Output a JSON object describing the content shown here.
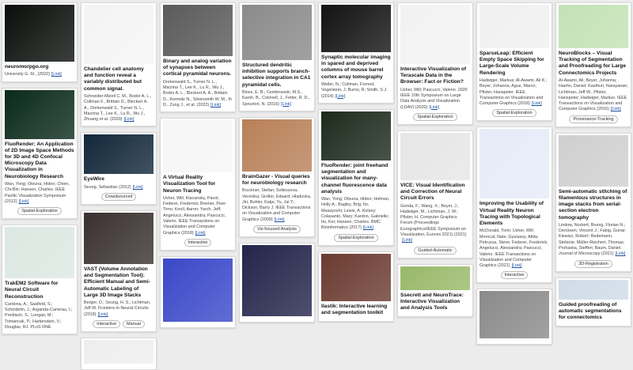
{
  "columns": [
    {
      "cards": [
        {
          "title": "neuromorpgo.org",
          "meta": "University G. M., (2022)",
          "link": "[Link]"
        },
        {
          "title": "FluoRender: An Application of 2D Image Space Methods for 3D and 4D Confocal Microscopy Data Visualization in Neurobiology Research",
          "meta": "Wan, Yong; Otsuna, Hideo; Chien, Chi-Bin; Hansen, Charles. IEEE Pacific Visualization Symposium (2012)",
          "link": "[Link]",
          "tags": [
            "Spatial-Exploration"
          ]
        },
        {
          "title": "TrakEM2 Software for Neural Circuit Reconstruction",
          "meta": "Cardona, A.; Saalfeld, S.; Schindelin, J.; Arganda-Carreras, I.; Preibisch, S.; Longair, M.; Tomancak, P.; Hartenstein, V.; Douglas, RJ. PLoS ONE"
        }
      ]
    },
    {
      "cards": [
        {
          "title": "Chandelier cell anatomy and function reveal a variably distributed but common signal.",
          "meta": "Schneider-Mizell C. M., Bodor A. L., Collman F., Brittain D., Bleckert A. A., Dorkenwald S., Turner N. L., Macrina T., Lee K., Lu R., Wu J., Zhuang et al. (2020)",
          "link": "[Link]"
        },
        {
          "title": "EyeWire",
          "meta": "Seung, Sebastian (2012)",
          "link": "[Link]",
          "tags": [
            "Crowdsourced"
          ]
        },
        {
          "title": "VAST (Volume Annotation and Segmentation Tool): Efficient Manual and Semi-Automatic Labeling of Large 3D Image Stacks",
          "meta": "Berger, D.; Seung, H. S.; Lichtman, Jeff W. Frontiers in Neural Circuits (2018)",
          "link": "[Link]",
          "tags": [
            "Interactive",
            "Manual"
          ]
        }
      ]
    },
    {
      "cards": [
        {
          "title": "Binary and analog variation of synapses between cortical pyramidal neurons.",
          "meta": "Dorkenwald S., Turner N. L., Macrina T., Lee K., Lu R., Wu J., Bodor A. L., Bleckert A. A., Brittain D., Kemnitz N., Silversmith W. M., Ih D., Zung J., et al. (2022)",
          "link": "[Link]"
        },
        {
          "title": "A Virtual Reality Visualization Tool for Neuron Tracing",
          "meta": "Usher, Will; Klacansky, Pavol; Federer, Frederick; Bremer, Peer-Timo; Knoll, Aaron; Yarch, Jeff; Angelucci, Alessandra; Pascucci, Valerio. IEEE Transactions on Visualization and Computer Graphics (2018)",
          "link": "[Link]",
          "tags": [
            "Interactive"
          ]
        }
      ]
    },
    {
      "cards": [
        {
          "title": "Structured dendritic inhibition supports branch-selective integration in CA1 pyramidal cells.",
          "meta": "Bloss, E. B., Cembrowski, M.S., Karsh, B., Colonell, J., Fetter, R. D., Spruston, N. (2016)",
          "link": "[Link]"
        },
        {
          "title": "BrainGazer - Visual queries for neurobiology research",
          "meta": "Bruckner, Stefan; Solteszova, Veronika; Groller, Eduard; Hladuvka, Jiri; Buhler, Katja; Yu, Jai Y.; Dickson, Barry J. IEEE Transactions on Visualization and Computer Graphics (2009)",
          "link": "[Link]",
          "tags": [
            "Vis-focused-Analysis"
          ]
        }
      ]
    },
    {
      "cards": [
        {
          "title": "Synaptic molecular imaging in spared and deprived columns of mouse barrel cortex array tomography",
          "meta": "Weiler, N.; Collman, Forrest; Vogelstein, J; Burns, R; Smith, S J. (2014)",
          "link": "[Link]"
        },
        {
          "title": "FluoRender: joint freehand segmentation and visualization for many-channel fluorescence data analysis",
          "meta": "Wan, Yong; Otsuna, Hideo; Holman, Holly A.; Bagley, Brig; Ito, Masayoshi; Lewis, A. Kelsey; Colasanto, Mary; Kardon, Gabrielle; Ito, Kei; Hansen, Charles. BMC Bioinformatics (2017)",
          "link": "[Link]",
          "tags": [
            "Spatial-Exploration"
          ]
        },
        {
          "title": "Ilastik: Interactive learning and segmentation toolkit"
        }
      ]
    },
    {
      "cards": [
        {
          "title": "Interactive Visualization of Terascale Data in the Browser: Fact or Fiction?",
          "meta": "Usher, Will; Pascucci, Valerio. 2020 IEEE 10th Symposium on Large Data Analysis and Visualization (LDAV) (2020)",
          "link": "[Link]",
          "tags": [
            "Spatial-Exploration"
          ]
        },
        {
          "title": "VICE: Visual Identification and Correction of Neural Circuit Errors",
          "meta": "Gonda, F.; Wang, X.; Beyer, J.; Hadwiger, M.; Lichtman, J. W.; Pfister, H. Computer Graphics Forum (Proceedings Eurographics/IEEE Symposium on Visualization, Eurovis 2021) (2021)",
          "link": "[Link]",
          "tags": [
            "Guided-Automatic"
          ]
        },
        {
          "title": "Ssecrett and NeuroTrace: Interactive Visualization and Analysis Tools"
        }
      ]
    },
    {
      "cards": [
        {
          "title": "SparseLeap: Efficient Empty Space Skipping for Large-Scale Volume Rendering",
          "meta": "Hadwiger, Markus; Al-Awami, Ali K.; Beyer, Johanna; Agus, Marco; Pfister, Hanspeter. IEEE Transactions on Visualization and Computer Graphics (2018)",
          "link": "[Link]",
          "tags": [
            "Spatial-Exploration"
          ]
        },
        {
          "title": "Improving the Usability of Virtual Reality Neuron Tracing with Topological Elements",
          "meta": "McDonald, Torin; Usher, Will; Morrical, Nate; Gyulassy, Attila; Petruzza, Steve; Federer, Frederick; Angelucci, Alessandra; Pascucci, Valerio. IEEE Transactions on Visualization and Computer Graphics (2021)",
          "link": "[Link]",
          "tags": [
            "Interactive"
          ]
        }
      ]
    },
    {
      "cards": [
        {
          "title": "NeuroBlocks – Visual Tracking of Segmentation and Proofreading for Large Connectomics Projects",
          "meta": "Al-Awami, Ali; Beyer, Johanna; Haehn, Daniel; Kasthuri, Narayanan; Lichtman, Jeff W.; Pfister, Hanspeter; Hadwiger, Markus. IEEE Transactions on Visualization and Computer Graphics (2016)",
          "link": "[Link]",
          "tags": [
            "Provenance-Tracking"
          ]
        },
        {
          "title": "Semi-automatic stitching of filamentous structures in image stacks from serial-section electron tomography",
          "meta": "Lindow, Norbert; Brunig, Florian N.; Dercksen, Vincent J.; Fabig, Gunar; Kiewisz, Robert; Redemann, Stefanie; Müller-Reichert, Thomas; Prohaska, Steffen; Baum, Daniel. Journal of Microscopy (2021)",
          "link": "[Link]",
          "tags": [
            "3D-Registration"
          ]
        },
        {
          "title": "Guided proofreading of automatic segmentations for connectomics"
        }
      ]
    }
  ]
}
